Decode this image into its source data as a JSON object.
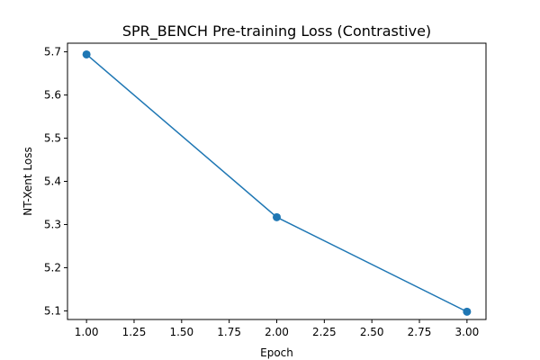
{
  "chart_data": {
    "type": "line",
    "title": "SPR_BENCH Pre-training Loss (Contrastive)",
    "xlabel": "Epoch",
    "ylabel": "NT-Xent Loss",
    "xlim": [
      0.9,
      3.1
    ],
    "ylim": [
      5.08,
      5.72
    ],
    "xticks": [
      1.0,
      1.25,
      1.5,
      1.75,
      2.0,
      2.25,
      2.5,
      2.75,
      3.0
    ],
    "xtick_labels": [
      "1.00",
      "1.25",
      "1.50",
      "1.75",
      "2.00",
      "2.25",
      "2.50",
      "2.75",
      "3.00"
    ],
    "yticks": [
      5.1,
      5.2,
      5.3,
      5.4,
      5.5,
      5.6,
      5.7
    ],
    "ytick_labels": [
      "5.1",
      "5.2",
      "5.3",
      "5.4",
      "5.5",
      "5.6",
      "5.7"
    ],
    "grid": false,
    "legend": null,
    "series": [
      {
        "x": [
          1.0,
          2.0,
          3.0
        ],
        "y": [
          5.694,
          5.317,
          5.098
        ],
        "color": "#1f77b4",
        "marker": "circle"
      }
    ]
  }
}
